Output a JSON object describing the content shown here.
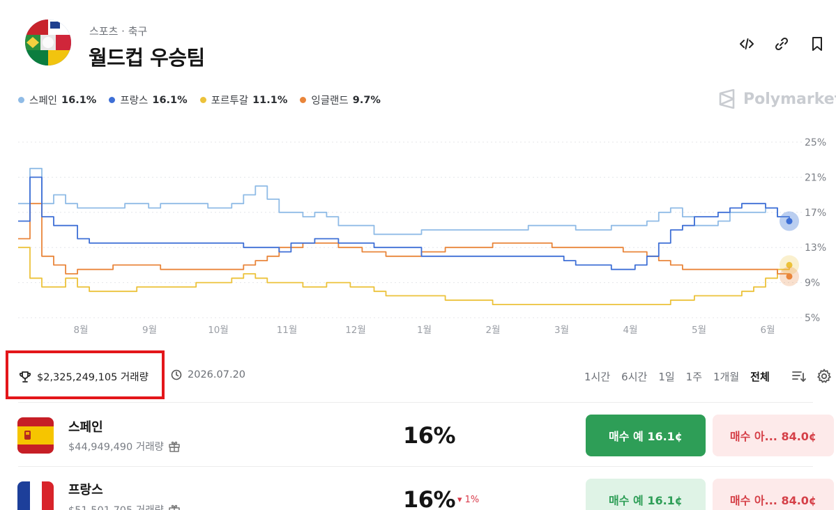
{
  "header": {
    "category": "스포츠 · 축구",
    "title": "월드컵 우승팀",
    "actions": [
      "embed-icon",
      "link-icon",
      "bookmark-icon"
    ]
  },
  "legend": [
    {
      "name": "스페인",
      "value": "16.1%",
      "color": "#8fbbe6"
    },
    {
      "name": "프랑스",
      "value": "16.1%",
      "color": "#3e6fd6"
    },
    {
      "name": "포르투갈",
      "value": "11.1%",
      "color": "#ecc23a"
    },
    {
      "name": "잉글랜드",
      "value": "9.7%",
      "color": "#e9853a"
    }
  ],
  "brand": "Polymarket",
  "chart_data": {
    "type": "line",
    "x_labels": [
      "8월",
      "9월",
      "10월",
      "11월",
      "12월",
      "1월",
      "2월",
      "3월",
      "4월",
      "5월",
      "6월"
    ],
    "y_ticks": [
      "25%",
      "21%",
      "17%",
      "13%",
      "9%",
      "5%"
    ],
    "ylim": [
      5,
      25
    ],
    "grid": true,
    "legend_position": "top-left",
    "series": [
      {
        "name": "스페인",
        "color": "#8fbbe6",
        "values": [
          18,
          22,
          18,
          19,
          18,
          17.5,
          17.5,
          17.5,
          17.5,
          18,
          18,
          17.5,
          18,
          18,
          18,
          18,
          17.5,
          17.5,
          18,
          19,
          20,
          18.5,
          17,
          17,
          16.5,
          17,
          16.5,
          15.5,
          15.5,
          15.5,
          14.5,
          14.5,
          14.5,
          14.5,
          15,
          15,
          15,
          15,
          15,
          15,
          15,
          15,
          15,
          15.5,
          15.5,
          15.5,
          15.5,
          15,
          15,
          15,
          15.5,
          15.5,
          15.5,
          16,
          17,
          17.5,
          16.5,
          15.5,
          15.5,
          16,
          17,
          17,
          17,
          17.5,
          16.5,
          16
        ]
      },
      {
        "name": "프랑스",
        "color": "#3e6fd6",
        "values": [
          16,
          21,
          16.5,
          15.5,
          15.5,
          14,
          13.5,
          13.5,
          13.5,
          13.5,
          13.5,
          13.5,
          13.5,
          13.5,
          13.5,
          13.5,
          13.5,
          13.5,
          13.5,
          13,
          13,
          13,
          12.5,
          13.5,
          13.5,
          14,
          14,
          13.5,
          13.5,
          13.5,
          13,
          13,
          13,
          13,
          12,
          12,
          12,
          12,
          12,
          12,
          12,
          12,
          12,
          12,
          12,
          12,
          11.5,
          11,
          11,
          11,
          10.5,
          10.5,
          11,
          12,
          13.5,
          15,
          15.5,
          16.5,
          16.5,
          17,
          17.5,
          18,
          18,
          17.5,
          16.5,
          16
        ]
      },
      {
        "name": "포르투갈",
        "color": "#ecc23a",
        "values": [
          13,
          9.5,
          8.5,
          8.5,
          9.5,
          8.5,
          8,
          8,
          8,
          8,
          8.5,
          8.5,
          8.5,
          8.5,
          8.5,
          9,
          9,
          9,
          9.5,
          10,
          9.5,
          9,
          9,
          9,
          8.5,
          8.5,
          9,
          9,
          8.5,
          8.5,
          8,
          7.5,
          7.5,
          7.5,
          7.5,
          7.5,
          7,
          7,
          7,
          7,
          6.5,
          6.5,
          6.5,
          6.5,
          6.5,
          6.5,
          6.5,
          6.5,
          6.5,
          6.5,
          6.5,
          6.5,
          6.5,
          6.5,
          6.5,
          7,
          7,
          7.5,
          7.5,
          7.5,
          7.5,
          8,
          8.5,
          9.5,
          10.5,
          11
        ]
      },
      {
        "name": "잉글랜드",
        "color": "#e9853a",
        "values": [
          14,
          18,
          12,
          11,
          10,
          10.5,
          10.5,
          10.5,
          11,
          11,
          11,
          11,
          10.5,
          10.5,
          10.5,
          10.5,
          10.5,
          10.5,
          10.5,
          11,
          11.5,
          12,
          13,
          13,
          13.5,
          13.5,
          13.5,
          13,
          13,
          12.5,
          12.5,
          12,
          12,
          12,
          12.5,
          12.5,
          13,
          13,
          13,
          13,
          13.5,
          13.5,
          13.5,
          13.5,
          13.5,
          13,
          13,
          13,
          13,
          13,
          13,
          12.5,
          12.5,
          12,
          11.5,
          11,
          10.5,
          10.5,
          10.5,
          10.5,
          10.5,
          10.5,
          10.5,
          10.5,
          10,
          9.7
        ]
      }
    ]
  },
  "toolbar": {
    "volume": "$2,325,249,105 거래량",
    "end_date": "2026.07.20",
    "ranges": [
      {
        "label": "1시간",
        "active": false
      },
      {
        "label": "6시간",
        "active": false
      },
      {
        "label": "1일",
        "active": false
      },
      {
        "label": "1주",
        "active": false
      },
      {
        "label": "1개월",
        "active": false
      },
      {
        "label": "전체",
        "active": true
      }
    ]
  },
  "outcomes": [
    {
      "name": "스페인",
      "volume": "$44,949,490 거래량",
      "percent": "16%",
      "change": "",
      "yes_label": "매수 예 16.1¢",
      "no_label": "매수 아... 84.0¢",
      "yes_bg": "#2e9e57",
      "yes_color": "#ffffff"
    },
    {
      "name": "프랑스",
      "volume": "$51,501,705 거래량",
      "percent": "16%",
      "change": "▾ 1%",
      "yes_label": "매수 예 16.1¢",
      "no_label": "매수 아... 84.0¢",
      "yes_bg": "#dff3e6",
      "yes_color": "#2e9e57"
    }
  ]
}
